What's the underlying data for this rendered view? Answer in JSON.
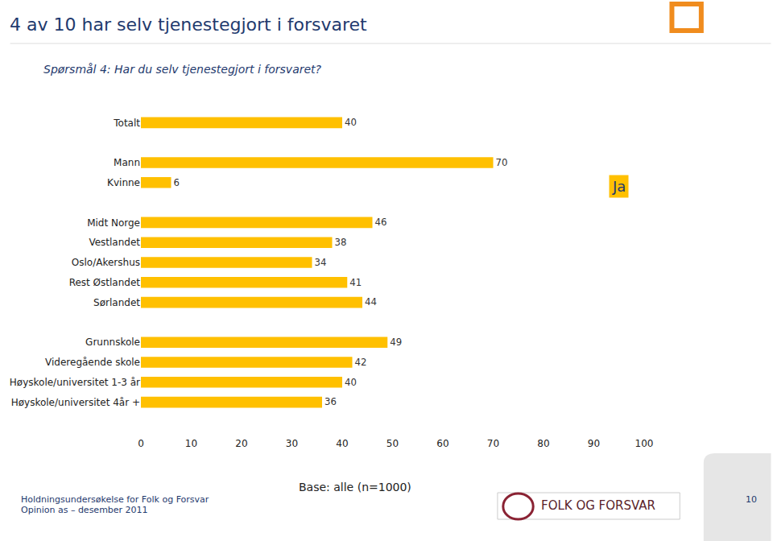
{
  "chart_data": {
    "type": "bar",
    "orientation": "horizontal",
    "title": "4 av 10 har selv tjenestegjort i forsvaret",
    "subtitle": "Spørsmål 4: Har du selv tjenestegjort i forsvaret?",
    "categories": [
      "Totalt",
      null,
      "Mann",
      "Kvinne",
      null,
      "Midt Norge",
      "Vestlandet",
      "Oslo/Akershus",
      "Rest Østlandet",
      "Sørlandet",
      null,
      "Grunnskole",
      "Videregående skole",
      "Høyskole/universitet 1-3 år",
      "Høyskole/universitet 4år +"
    ],
    "values": [
      40,
      null,
      70,
      6,
      null,
      46,
      38,
      34,
      41,
      44,
      null,
      49,
      42,
      40,
      36
    ],
    "color": "#ffc000",
    "xlim": [
      0,
      100
    ],
    "xticks": [
      0,
      10,
      20,
      30,
      40,
      50,
      60,
      70,
      80,
      90,
      100
    ],
    "grid": false,
    "data_labels": true,
    "annotations": [
      "Ja",
      "Base: alle (n=1000)",
      "Holdningsundersøkelse for Folk og Forsvar",
      "Opinion as – desember 2011",
      "FOLK OG FORSVAR",
      "10"
    ]
  }
}
